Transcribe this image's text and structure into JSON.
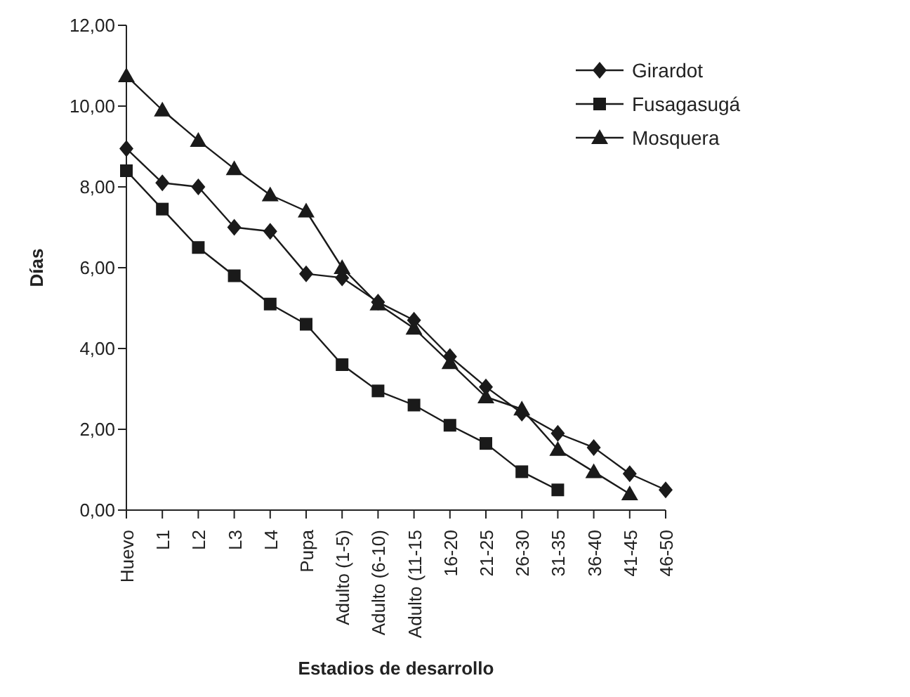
{
  "chart_data": {
    "type": "line",
    "xlabel": "Estadios de desarrollo",
    "ylabel": "Días",
    "categories": [
      "Huevo",
      "L1",
      "L2",
      "L3",
      "L4",
      "Pupa",
      "Adulto (1-5)",
      "Adulto (6-10)",
      "Adulto (11-15",
      "16-20",
      "21-25",
      "26-30",
      "31-35",
      "36-40",
      "41-45",
      "46-50"
    ],
    "series": [
      {
        "name": "Girardot",
        "color": "#1a1a1a",
        "marker": "diamond",
        "values": [
          8.95,
          8.1,
          8.0,
          7.0,
          6.9,
          5.85,
          5.75,
          5.15,
          4.7,
          3.8,
          3.05,
          2.4,
          1.9,
          1.55,
          0.9,
          0.5
        ]
      },
      {
        "name": "Fusagasugá",
        "color": "#1a1a1a",
        "marker": "square",
        "values": [
          8.4,
          7.45,
          6.5,
          5.8,
          5.1,
          4.6,
          3.6,
          2.95,
          2.6,
          2.1,
          1.65,
          0.95,
          0.5,
          null,
          null,
          null
        ]
      },
      {
        "name": "Mosquera",
        "color": "#1a1a1a",
        "marker": "triangle",
        "values": [
          10.75,
          9.9,
          9.15,
          8.45,
          7.8,
          7.4,
          6.0,
          5.1,
          4.5,
          3.65,
          2.8,
          2.5,
          1.5,
          0.95,
          0.4,
          null
        ]
      }
    ],
    "ylim": [
      0,
      12
    ],
    "yticks": [
      {
        "value": 0,
        "label": "0,00"
      },
      {
        "value": 2,
        "label": "2,00"
      },
      {
        "value": 4,
        "label": "4,00"
      },
      {
        "value": 6,
        "label": "6,00"
      },
      {
        "value": 8,
        "label": "8,00"
      },
      {
        "value": 10,
        "label": "10,00"
      },
      {
        "value": 12,
        "label": "12,00"
      }
    ],
    "grid": false,
    "legend": "top right",
    "line_style": "solid"
  }
}
